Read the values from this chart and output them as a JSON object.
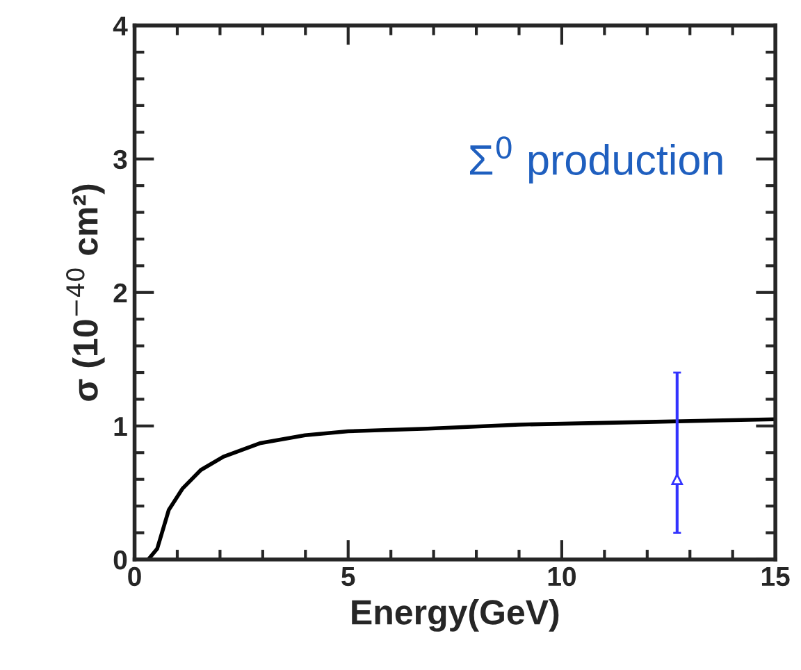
{
  "chart_data": {
    "type": "line",
    "xlabel": "Energy(GeV)",
    "ylabel": "σ (10$^{−40}$ cm²)",
    "annotations": [
      "Σ$^{0}$ production"
    ],
    "series": [
      {
        "color": "#000000",
        "x": [
          0.32,
          0.53,
          0.8,
          1.12,
          1.55,
          2.08,
          2.93,
          3.99,
          5.0,
          6.86,
          9.0,
          12.0,
          15.0
        ],
        "values": [
          0,
          0.08,
          0.37,
          0.53,
          0.67,
          0.77,
          0.87,
          0.93,
          0.96,
          0.98,
          1.01,
          1.03,
          1.05
        ]
      },
      {
        "type": "scatter",
        "color": "#3333ff",
        "marker": "triangle",
        "x": [
          12.7
        ],
        "values": [
          0.6
        ],
        "errors": [
          [
            0.2,
            1.4
          ]
        ]
      }
    ],
    "xlim": [
      0,
      15
    ],
    "xticks": [
      0,
      5,
      10,
      15
    ],
    "ylim": [
      0,
      4
    ],
    "yticks": [
      0,
      1,
      2,
      3,
      4
    ],
    "grid": false
  }
}
